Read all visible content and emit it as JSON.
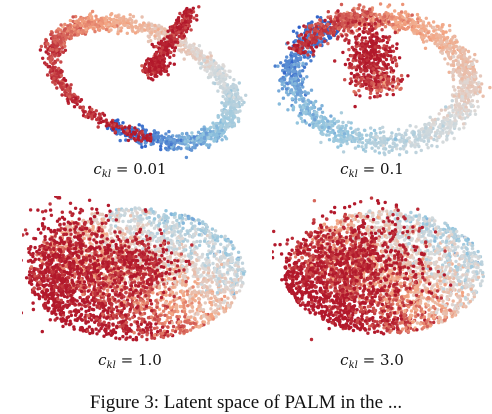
{
  "figure": {
    "caption": "Figure 3: Latent space of PALM in the ...",
    "panels": [
      {
        "id": "p1",
        "variable": "c",
        "subscript": "kl",
        "value": "0.01"
      },
      {
        "id": "p2",
        "variable": "c",
        "subscript": "kl",
        "value": "0.1"
      },
      {
        "id": "p3",
        "variable": "c",
        "subscript": "kl",
        "value": "1.0"
      },
      {
        "id": "p4",
        "variable": "c",
        "subscript": "kl",
        "value": "3.0"
      }
    ]
  },
  "colors": {
    "red": "#b2182b",
    "light_red": "#f4a582",
    "neutral": "#dcdcdc",
    "light_blue": "#92c5de",
    "blue": "#2c5fc9"
  }
}
